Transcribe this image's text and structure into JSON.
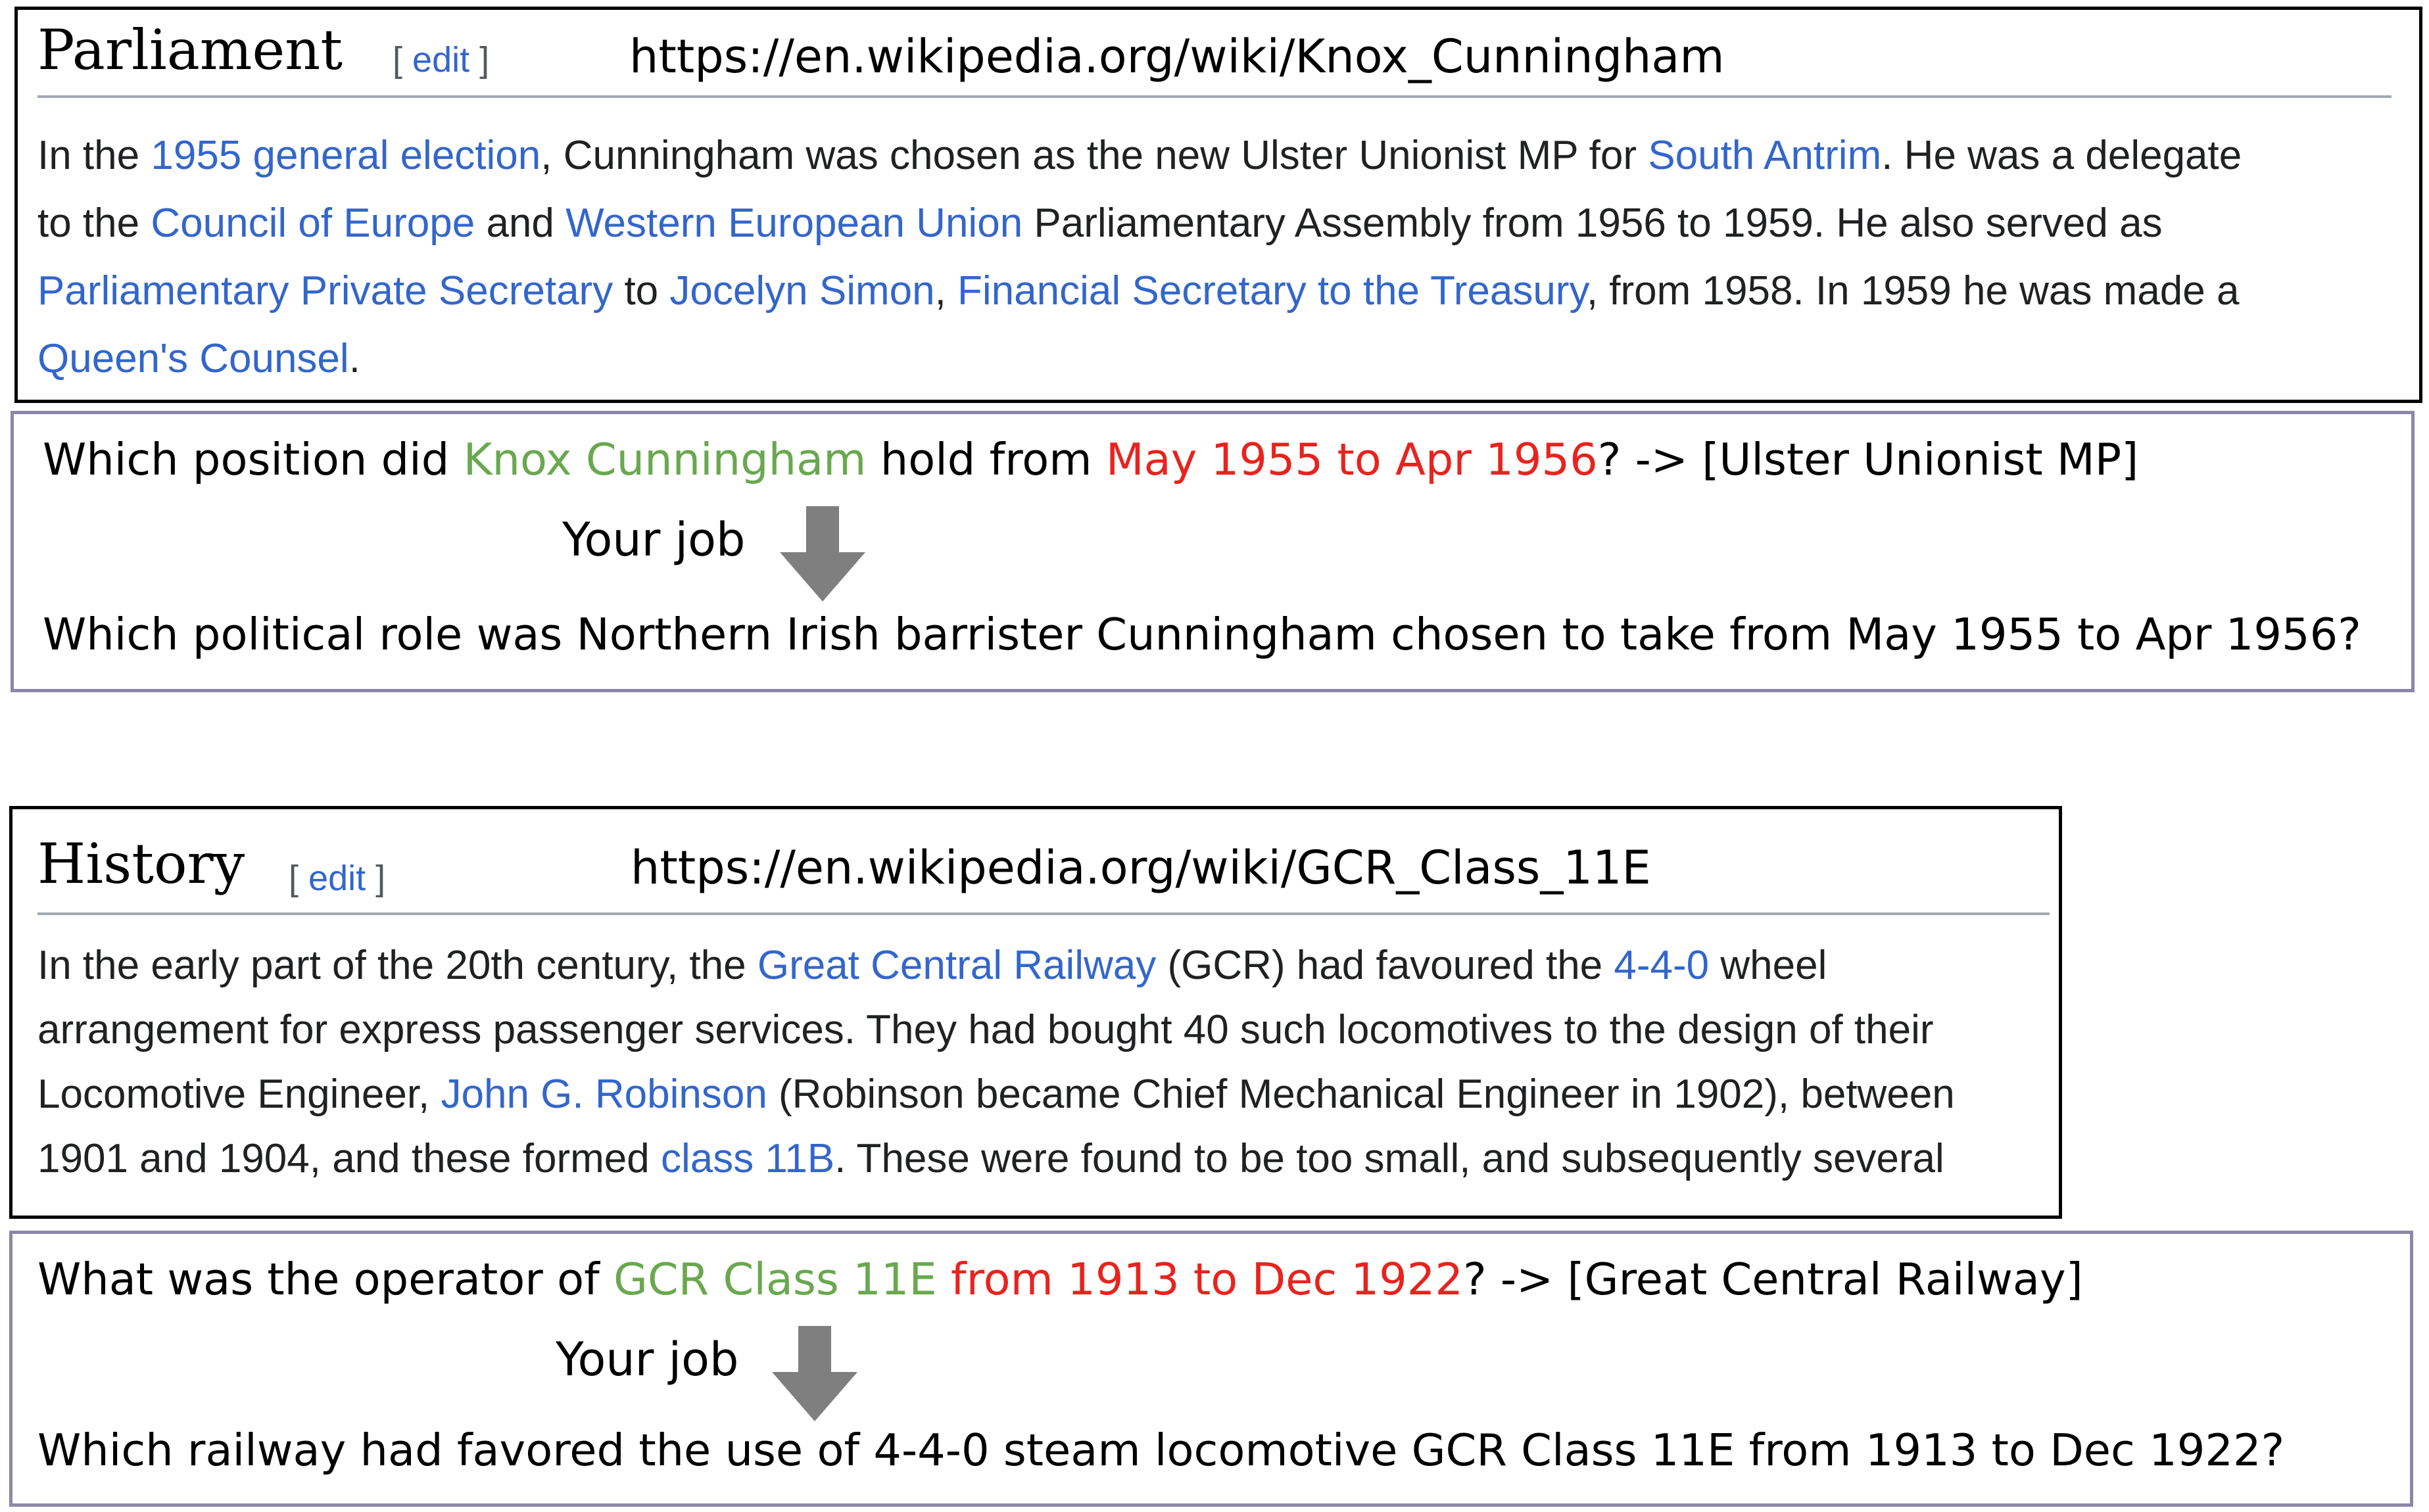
{
  "examples": [
    {
      "section_title": "Parliament",
      "edit": {
        "open": "[",
        "label": "edit",
        "close": "]"
      },
      "url": "https://en.wikipedia.org/wiki/Knox_Cunningham",
      "passage_lines": [
        [
          {
            "t": "In the "
          },
          {
            "t": "1955 general election",
            "link": true
          },
          {
            "t": ", Cunningham was chosen as the new Ulster Unionist MP for "
          },
          {
            "t": "South Antrim",
            "link": true
          },
          {
            "t": ". He was a delegate"
          }
        ],
        [
          {
            "t": "to the "
          },
          {
            "t": "Council of Europe",
            "link": true
          },
          {
            "t": " and "
          },
          {
            "t": "Western European Union",
            "link": true
          },
          {
            "t": " Parliamentary Assembly from 1956 to 1959. He also served as"
          }
        ],
        [
          {
            "t": "Parliamentary Private Secretary",
            "link": true
          },
          {
            "t": " to "
          },
          {
            "t": "Jocelyn Simon",
            "link": true
          },
          {
            "t": ", "
          },
          {
            "t": "Financial Secretary to the Treasury",
            "link": true
          },
          {
            "t": ", from 1958. In 1959 he was made a"
          }
        ],
        [
          {
            "t": "Queen's Counsel",
            "link": true
          },
          {
            "t": "."
          }
        ]
      ],
      "question": [
        {
          "t": "Which position did "
        },
        {
          "t": "Knox Cunningham",
          "c": "ent"
        },
        {
          "t": " hold from "
        },
        {
          "t": "May 1955 to Apr 1956",
          "c": "tim"
        },
        {
          "t": "? -> [Ulster Unionist MP]"
        }
      ],
      "job_label": "Your job",
      "rewritten": "Which political role was  Northern Irish barrister Cunningham chosen to take from May 1955 to Apr 1956?"
    },
    {
      "section_title": "History",
      "edit": {
        "open": "[",
        "label": "edit",
        "close": "]"
      },
      "url": "https://en.wikipedia.org/wiki/GCR_Class_11E",
      "passage_lines": [
        [
          {
            "t": "In the early part of the 20th century, the "
          },
          {
            "t": "Great Central Railway",
            "link": true
          },
          {
            "t": " (GCR) had favoured the "
          },
          {
            "t": "4-4-0",
            "link": true
          },
          {
            "t": " wheel"
          }
        ],
        [
          {
            "t": "arrangement for express passenger services. They had bought 40 such locomotives to the design of their"
          }
        ],
        [
          {
            "t": "Locomotive Engineer, "
          },
          {
            "t": "John G. Robinson",
            "link": true
          },
          {
            "t": " (Robinson became Chief Mechanical Engineer in 1902), between"
          }
        ],
        [
          {
            "t": "1901 and 1904, and these formed "
          },
          {
            "t": "class 11B",
            "link": true
          },
          {
            "t": ". These were found to be too small, and subsequently several"
          }
        ]
      ],
      "question": [
        {
          "t": "What was the operator of "
        },
        {
          "t": "GCR Class 11E",
          "c": "ent"
        },
        {
          "t": " "
        },
        {
          "t": "from 1913 to Dec 1922",
          "c": "tim"
        },
        {
          "t": "?  -> [Great Central Railway]"
        }
      ],
      "job_label": "Your job",
      "rewritten": "Which railway had favored the use of 4-4-0 steam locomotive GCR Class 11E from 1913 to Dec 1922?"
    }
  ]
}
